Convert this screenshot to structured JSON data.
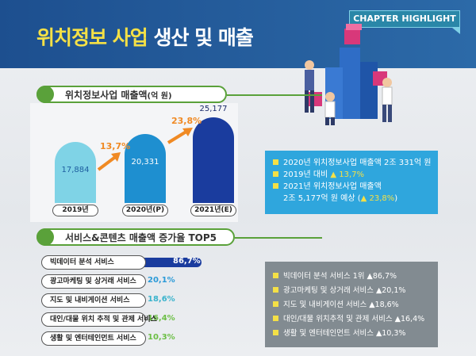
{
  "header": {
    "title_part1": "위치정보 사업",
    "title_part2": "생산 및 매출",
    "chapter_tab": "CHAPTER HIGHLIGHT"
  },
  "section1": {
    "title": "위치정보사업 매출액",
    "unit": "(억 원)"
  },
  "section2": {
    "title": "서비스&콘텐츠 매출액 증가율 TOP5"
  },
  "chart_data": [
    {
      "type": "bar",
      "title": "위치정보사업 매출액(억 원)",
      "categories": [
        "2019년",
        "2020년(P)",
        "2021년(E)"
      ],
      "values": [
        17884,
        20331,
        25177
      ],
      "value_labels": [
        "17,884",
        "20,331",
        "25,177"
      ],
      "growth_labels": [
        "13,7%",
        "23,8%"
      ],
      "colors": [
        "#7fd3e6",
        "#1e8fd0",
        "#1a3c9e"
      ]
    },
    {
      "type": "bar",
      "orientation": "horizontal",
      "title": "서비스&콘텐츠 매출액 증가율 TOP5",
      "categories": [
        "빅데이터 분석 서비스",
        "광고마케팅 및 상거래 서비스",
        "지도 및 내비게이션 서비스",
        "대인/대물 위치 추적 및 관제 서비스",
        "생활 및 엔터테인먼트 서비스"
      ],
      "values": [
        86.7,
        20.1,
        18.6,
        16.4,
        10.3
      ],
      "value_labels": [
        "86,7%",
        "20,1%",
        "18,6%",
        "16,4%",
        "10,3%"
      ],
      "colors": [
        "#1a3c9e",
        "#2a9ad8",
        "#39b3cc",
        "#6cbf45",
        "#6cbf45"
      ]
    }
  ],
  "summary_blue": {
    "lines": [
      {
        "text": "2020년 위치정보사업 매출액 2조 331억 원",
        "highlight": ""
      },
      {
        "text": "2019년 대비 ",
        "highlight": "▲ 13,7%"
      },
      {
        "text": "2021년 위치정보사업 매출액",
        "highlight": ""
      },
      {
        "text": "2조 5,177억 원 예상 (",
        "highlight": "▲ 23,8%",
        "tail": ")"
      }
    ]
  },
  "summary_gray": {
    "lines": [
      "빅데이터 분석 서비스 1위 ▲86,7%",
      "광고마케팅 및 상거래 서비스 ▲20,1%",
      "지도 및 내비게이션 서비스 ▲18,6%",
      "대인/대물 위치추적 및 관제 서비스 ▲16,4%",
      "생활 및 엔터테인먼트 서비스 ▲10,3%"
    ]
  },
  "colors": {
    "banner": "#1d4f8f",
    "accent_yellow": "#f4e046",
    "section_green": "#5aa13a",
    "arrow_orange": "#f08a24"
  }
}
